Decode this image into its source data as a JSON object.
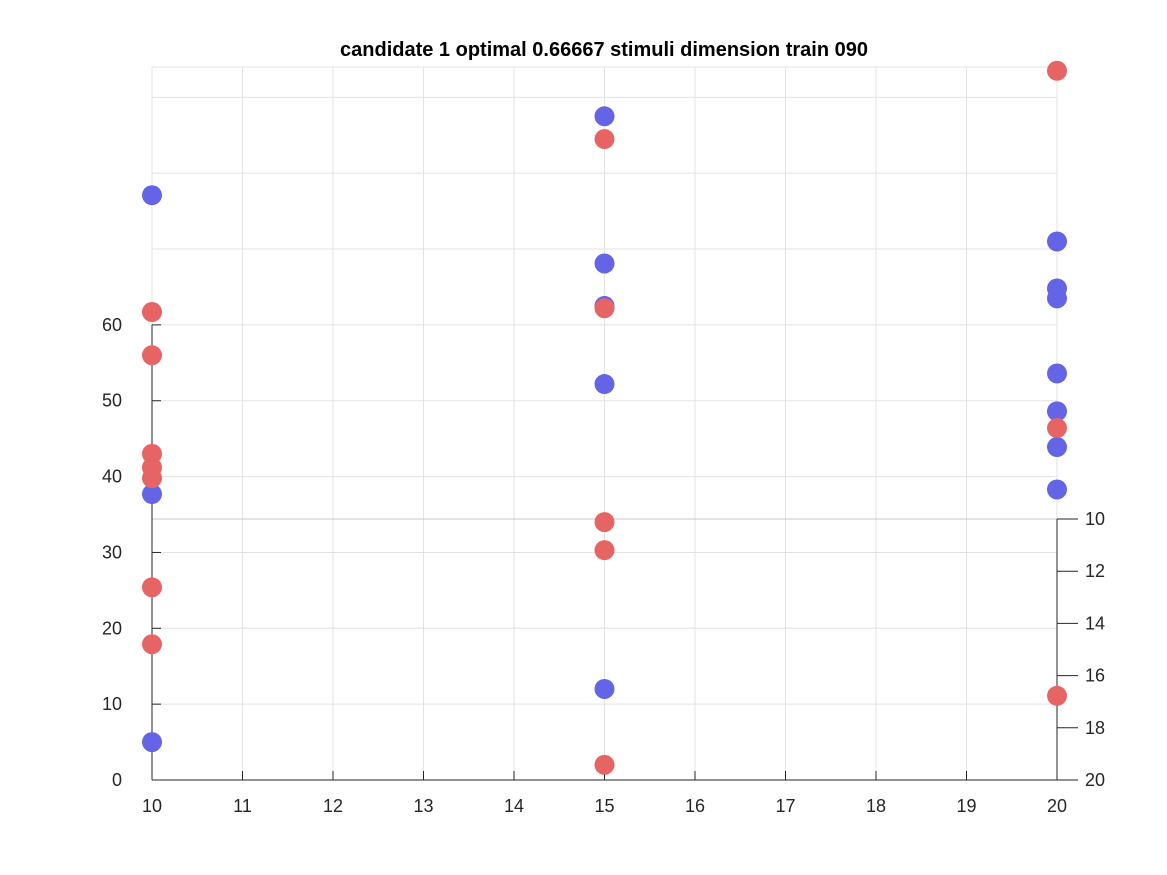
{
  "chart_data": {
    "type": "scatter",
    "title": "candidate 1 optimal 0.66667 stimuli dimension train 090",
    "xlabel": "",
    "ylabel": "",
    "x_ticks": [
      "10",
      "11",
      "12",
      "13",
      "14",
      "15",
      "16",
      "17",
      "18",
      "19",
      "20"
    ],
    "y_ticks_left": [
      "0",
      "10",
      "20",
      "30",
      "40",
      "50",
      "60"
    ],
    "y_ticks_right": [
      "10",
      "12",
      "14",
      "16",
      "18",
      "20"
    ],
    "xlim": [
      10,
      20
    ],
    "ylim": [
      0,
      94
    ],
    "grid": true,
    "colors": {
      "blue": "#6464e6",
      "red": "#e66464",
      "grid": "#e3e3e3",
      "axis": "#262626"
    },
    "series": [
      {
        "color": "blue",
        "points": [
          {
            "x": 10,
            "y": 77.1
          },
          {
            "x": 10,
            "y": 37.7
          },
          {
            "x": 10,
            "y": 5.0
          },
          {
            "x": 15,
            "y": 87.5
          },
          {
            "x": 15,
            "y": 68.1
          },
          {
            "x": 15,
            "y": 62.5
          },
          {
            "x": 15,
            "y": 52.2
          },
          {
            "x": 15,
            "y": 12.0
          },
          {
            "x": 20,
            "y": 71.0
          },
          {
            "x": 20,
            "y": 64.8
          },
          {
            "x": 20,
            "y": 63.5
          },
          {
            "x": 20,
            "y": 53.6
          },
          {
            "x": 20,
            "y": 48.6
          },
          {
            "x": 20,
            "y": 43.9
          },
          {
            "x": 20,
            "y": 38.3
          }
        ]
      },
      {
        "color": "red",
        "points": [
          {
            "x": 10,
            "y": 61.7
          },
          {
            "x": 10,
            "y": 56.0
          },
          {
            "x": 10,
            "y": 43.0
          },
          {
            "x": 10,
            "y": 41.2
          },
          {
            "x": 10,
            "y": 39.8
          },
          {
            "x": 10,
            "y": 25.4
          },
          {
            "x": 10,
            "y": 17.9
          },
          {
            "x": 15,
            "y": 84.5
          },
          {
            "x": 15,
            "y": 62.2
          },
          {
            "x": 15,
            "y": 34.0
          },
          {
            "x": 15,
            "y": 30.3
          },
          {
            "x": 15,
            "y": 2.0
          },
          {
            "x": 20,
            "y": 93.5
          },
          {
            "x": 20,
            "y": 46.4
          },
          {
            "x": 20,
            "y": 11.1
          }
        ]
      }
    ]
  }
}
